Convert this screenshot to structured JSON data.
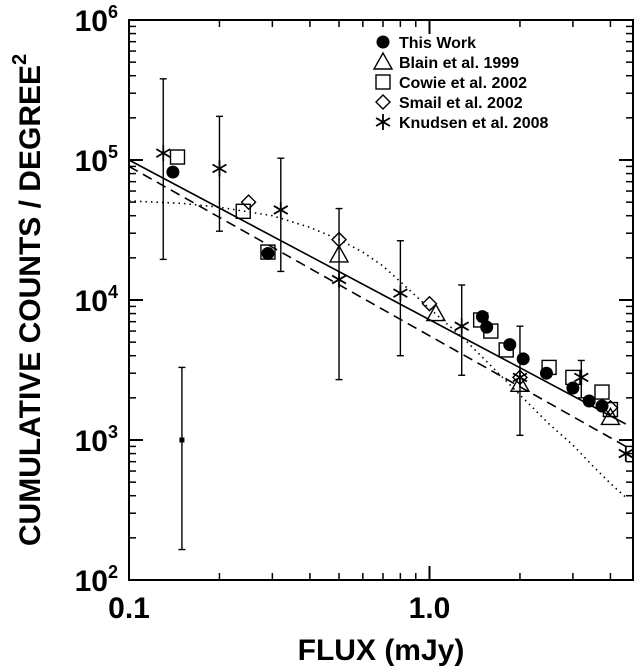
{
  "chart_data": {
    "type": "scatter",
    "xlabel": "FLUX (mJy)",
    "ylabel": "CUMULATIVE COUNTS / DEGREE",
    "ylabel_sup": "2",
    "x_scale": "log",
    "y_scale": "log",
    "xlim": [
      0.1,
      4.5
    ],
    "ylim": [
      100,
      1000000
    ],
    "x_ticks": [
      {
        "value": 0.1,
        "label": "0.1"
      },
      {
        "value": 1.0,
        "label": "1.0"
      }
    ],
    "y_ticks": [
      {
        "value": 100,
        "base": "10",
        "exp": "2"
      },
      {
        "value": 1000,
        "base": "10",
        "exp": "3"
      },
      {
        "value": 10000,
        "base": "10",
        "exp": "4"
      },
      {
        "value": 100000,
        "base": "10",
        "exp": "5"
      },
      {
        "value": 1000000,
        "base": "10",
        "exp": "6"
      }
    ],
    "legend_position": "top-right",
    "series": [
      {
        "name": "This Work",
        "marker": "filled-circle",
        "points": [
          {
            "x": 0.14,
            "y": 82000
          },
          {
            "x": 0.29,
            "y": 21500
          },
          {
            "x": 1.5,
            "y": 7600
          },
          {
            "x": 1.55,
            "y": 6400
          },
          {
            "x": 1.85,
            "y": 4800
          },
          {
            "x": 2.05,
            "y": 3800
          },
          {
            "x": 2.45,
            "y": 3000
          },
          {
            "x": 3.0,
            "y": 2350
          },
          {
            "x": 3.4,
            "y": 1900
          },
          {
            "x": 3.75,
            "y": 1750
          }
        ]
      },
      {
        "name": "Blain et al. 1999",
        "marker": "open-triangle",
        "points": [
          {
            "x": 0.5,
            "y": 21000
          },
          {
            "x": 1.05,
            "y": 8000
          },
          {
            "x": 2.0,
            "y": 2500
          },
          {
            "x": 4.0,
            "y": 1450
          }
        ]
      },
      {
        "name": "Cowie et al. 2002",
        "marker": "open-square",
        "points": [
          {
            "x": 0.145,
            "y": 105000
          },
          {
            "x": 0.24,
            "y": 43000
          },
          {
            "x": 0.29,
            "y": 22000
          },
          {
            "x": 1.48,
            "y": 7200
          },
          {
            "x": 1.6,
            "y": 6000
          },
          {
            "x": 1.8,
            "y": 4400
          },
          {
            "x": 2.5,
            "y": 3300
          },
          {
            "x": 3.0,
            "y": 2800
          },
          {
            "x": 3.75,
            "y": 2200
          },
          {
            "x": 4.0,
            "y": 1650
          }
        ]
      },
      {
        "name": "Smail et al. 2002",
        "marker": "open-diamond",
        "points": [
          {
            "x": 0.25,
            "y": 50000
          },
          {
            "x": 0.5,
            "y": 27000
          },
          {
            "x": 1.0,
            "y": 9400
          },
          {
            "x": 2.0,
            "y": 2800
          },
          {
            "x": 4.0,
            "y": 1700
          }
        ]
      },
      {
        "name": "Knudsen et al. 2008",
        "marker": "asterisk",
        "points": [
          {
            "x": 0.13,
            "y": 112000,
            "yerr": [
              19500,
              380000
            ]
          },
          {
            "x": 0.2,
            "y": 87000,
            "yerr": [
              31000,
              205000
            ]
          },
          {
            "x": 0.32,
            "y": 44000,
            "yerr": [
              16000,
              103000
            ]
          },
          {
            "x": 0.5,
            "y": 14000,
            "yerr": [
              2700,
              45000
            ]
          },
          {
            "x": 0.8,
            "y": 11200,
            "yerr": [
              4000,
              26500
            ]
          },
          {
            "x": 1.28,
            "y": 6500,
            "yerr": [
              2900,
              12800
            ]
          },
          {
            "x": 2.0,
            "y": 2800,
            "yerr": [
              1080,
              6500
            ]
          },
          {
            "x": 3.2,
            "y": 2800,
            "yerr": [
              2000,
              3700
            ]
          },
          {
            "x": 4.5,
            "y": 800
          }
        ]
      }
    ],
    "lone_point": {
      "x": 0.15,
      "y": 1000,
      "yerr": [
        165,
        3300
      ]
    },
    "model_curves": [
      {
        "style": "solid",
        "points": [
          [
            0.1,
            100000
          ],
          [
            4.5,
            1300
          ]
        ]
      },
      {
        "style": "dashed",
        "points": [
          [
            0.1,
            90000
          ],
          [
            4.5,
            900
          ]
        ]
      },
      {
        "style": "dotted",
        "points": [
          [
            0.1,
            51000
          ],
          [
            0.15,
            49000
          ],
          [
            0.2,
            46000
          ],
          [
            0.3,
            40000
          ],
          [
            0.4,
            33000
          ],
          [
            0.5,
            27000
          ],
          [
            0.6,
            22000
          ],
          [
            0.7,
            17500
          ],
          [
            0.8,
            13500
          ],
          [
            1.0,
            8700
          ],
          [
            1.3,
            5300
          ],
          [
            1.6,
            3400
          ],
          [
            2.0,
            2100
          ],
          [
            2.5,
            1300
          ],
          [
            3.0,
            920
          ],
          [
            3.5,
            650
          ],
          [
            4.0,
            490
          ],
          [
            4.5,
            390
          ]
        ]
      }
    ]
  }
}
